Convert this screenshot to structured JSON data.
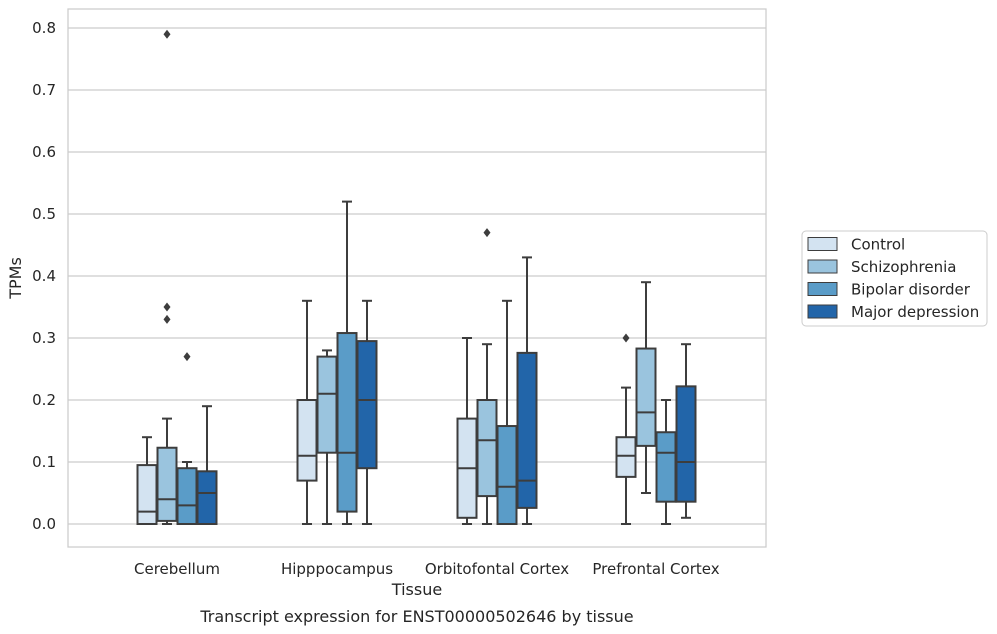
{
  "chart_data": {
    "type": "box",
    "title": "",
    "caption": "Transcript expression for ENST00000502646 by tissue",
    "xlabel": "Tissue",
    "ylabel": "TPMs",
    "ylim": [
      -0.04,
      0.83
    ],
    "yticks": [
      0.0,
      0.1,
      0.2,
      0.3,
      0.4,
      0.5,
      0.6,
      0.7,
      0.8
    ],
    "ytick_labels": [
      "0.0",
      "0.1",
      "0.2",
      "0.3",
      "0.4",
      "0.5",
      "0.6",
      "0.7",
      "0.8"
    ],
    "grid": "horizontal",
    "legend_position": "right",
    "categories": [
      "Cerebellum",
      "Hipppocampus",
      "Orbitofontal Cortex",
      "Prefrontal Cortex"
    ],
    "series": [
      {
        "name": "Control",
        "color": "#d3e3f1",
        "boxes": [
          {
            "whislo": 0.0,
            "q1": 0.0,
            "med": 0.02,
            "q3": 0.095,
            "whishi": 0.14,
            "fliers": []
          },
          {
            "whislo": 0.0,
            "q1": 0.07,
            "med": 0.11,
            "q3": 0.2,
            "whishi": 0.36,
            "fliers": []
          },
          {
            "whislo": 0.0,
            "q1": 0.01,
            "med": 0.09,
            "q3": 0.17,
            "whishi": 0.3,
            "fliers": []
          },
          {
            "whislo": 0.0,
            "q1": 0.076,
            "med": 0.11,
            "q3": 0.14,
            "whishi": 0.22,
            "fliers": [
              0.3
            ]
          }
        ]
      },
      {
        "name": "Schizophrenia",
        "color": "#9ac4de",
        "boxes": [
          {
            "whislo": 0.0,
            "q1": 0.005,
            "med": 0.04,
            "q3": 0.123,
            "whishi": 0.17,
            "fliers": [
              0.33,
              0.35,
              0.79
            ]
          },
          {
            "whislo": 0.0,
            "q1": 0.115,
            "med": 0.21,
            "q3": 0.27,
            "whishi": 0.28,
            "fliers": []
          },
          {
            "whislo": 0.0,
            "q1": 0.045,
            "med": 0.135,
            "q3": 0.2,
            "whishi": 0.29,
            "fliers": [
              0.47
            ]
          },
          {
            "whislo": 0.05,
            "q1": 0.126,
            "med": 0.18,
            "q3": 0.283,
            "whishi": 0.39,
            "fliers": []
          }
        ]
      },
      {
        "name": "Bipolar disorder",
        "color": "#5a9cc8",
        "boxes": [
          {
            "whislo": 0.0,
            "q1": 0.0,
            "med": 0.03,
            "q3": 0.09,
            "whishi": 0.1,
            "fliers": [
              0.27
            ]
          },
          {
            "whislo": 0.0,
            "q1": 0.02,
            "med": 0.115,
            "q3": 0.308,
            "whishi": 0.52,
            "fliers": []
          },
          {
            "whislo": 0.0,
            "q1": 0.0,
            "med": 0.06,
            "q3": 0.158,
            "whishi": 0.36,
            "fliers": []
          },
          {
            "whislo": 0.0,
            "q1": 0.036,
            "med": 0.115,
            "q3": 0.148,
            "whishi": 0.2,
            "fliers": []
          }
        ]
      },
      {
        "name": "Major depression",
        "color": "#2265a9",
        "boxes": [
          {
            "whislo": 0.0,
            "q1": 0.0,
            "med": 0.05,
            "q3": 0.085,
            "whishi": 0.19,
            "fliers": []
          },
          {
            "whislo": 0.0,
            "q1": 0.09,
            "med": 0.2,
            "q3": 0.295,
            "whishi": 0.36,
            "fliers": []
          },
          {
            "whislo": 0.0,
            "q1": 0.026,
            "med": 0.07,
            "q3": 0.276,
            "whishi": 0.43,
            "fliers": []
          },
          {
            "whislo": 0.01,
            "q1": 0.036,
            "med": 0.1,
            "q3": 0.222,
            "whishi": 0.29,
            "fliers": []
          }
        ]
      }
    ],
    "colors": {
      "grid": "#cccccc",
      "frame": "#cccccc",
      "line": "#3d3d3d",
      "text": "#262626",
      "background": "#ffffff"
    }
  }
}
